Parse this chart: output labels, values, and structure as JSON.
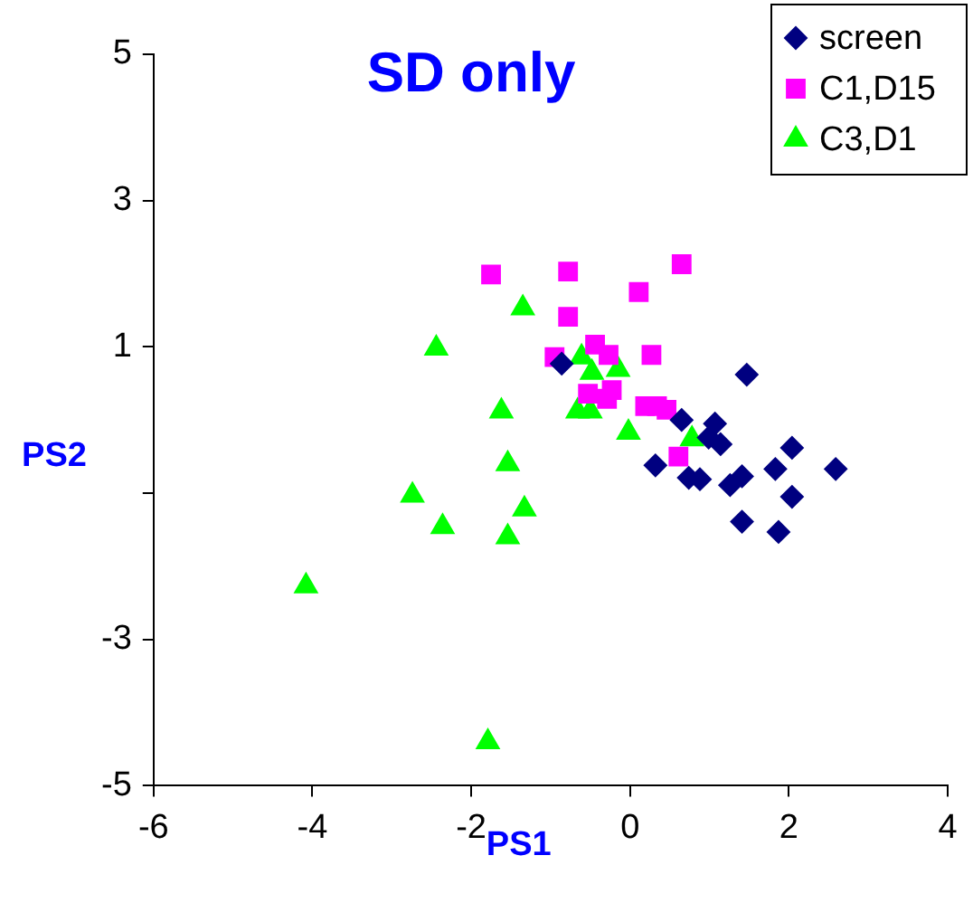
{
  "chart_data": {
    "type": "scatter",
    "title": "SD only",
    "xlabel": "PS1",
    "ylabel": "PS2",
    "xlim": [
      -6,
      4
    ],
    "xticks": [
      -6,
      -4,
      -2,
      0,
      2,
      4
    ],
    "ylim": [
      -5,
      5
    ],
    "yticks": [
      -5,
      -3,
      {
        "value": -1,
        "label": null
      },
      1,
      3,
      5
    ],
    "grid": false,
    "legend": "top right",
    "series": [
      {
        "name": "screen",
        "color": "#000080",
        "marker": "diamond",
        "x": [
          1.47,
          -0.86,
          0.65,
          1.07,
          0.99,
          1.14,
          2.04,
          0.32,
          1.83,
          2.59,
          0.74,
          0.88,
          1.41,
          1.26,
          2.04,
          1.41,
          1.87
        ],
        "values": [
          0.62,
          0.77,
          0,
          -0.05,
          -0.24,
          -0.33,
          -0.38,
          -0.62,
          -0.67,
          -0.67,
          -0.79,
          -0.81,
          -0.77,
          -0.89,
          -1.05,
          -1.39,
          -1.53
        ]
      },
      {
        "name": "C1,D15",
        "color": "#ff00ff",
        "marker": "square",
        "x": [
          -1.75,
          -0.78,
          -0.78,
          -0.95,
          -0.44,
          -0.27,
          0.65,
          0.11,
          0.27,
          -0.53,
          -0.23,
          -0.29,
          0.19,
          0.46,
          0.34,
          0.61
        ],
        "values": [
          1.99,
          2.03,
          1.41,
          0.86,
          1.03,
          0.89,
          2.13,
          1.75,
          0.89,
          0.36,
          0.41,
          0.29,
          0.19,
          0.14,
          0.19,
          -0.5
        ]
      },
      {
        "name": "C3,D1",
        "color": "#00ff00",
        "marker": "triangle",
        "x": [
          -1.35,
          -2.44,
          -1.62,
          -1.54,
          -2.74,
          -1.33,
          -2.36,
          -1.54,
          -4.08,
          -1.79,
          -0.61,
          -0.48,
          -0.15,
          -0.66,
          -0.5,
          -0.02,
          0.78
        ],
        "values": [
          1.53,
          0.98,
          0.12,
          -0.6,
          -1.03,
          -1.22,
          -1.46,
          -1.6,
          -2.27,
          -4.4,
          0.86,
          0.65,
          0.69,
          0.12,
          0.12,
          -0.17,
          -0.26
        ]
      }
    ]
  }
}
